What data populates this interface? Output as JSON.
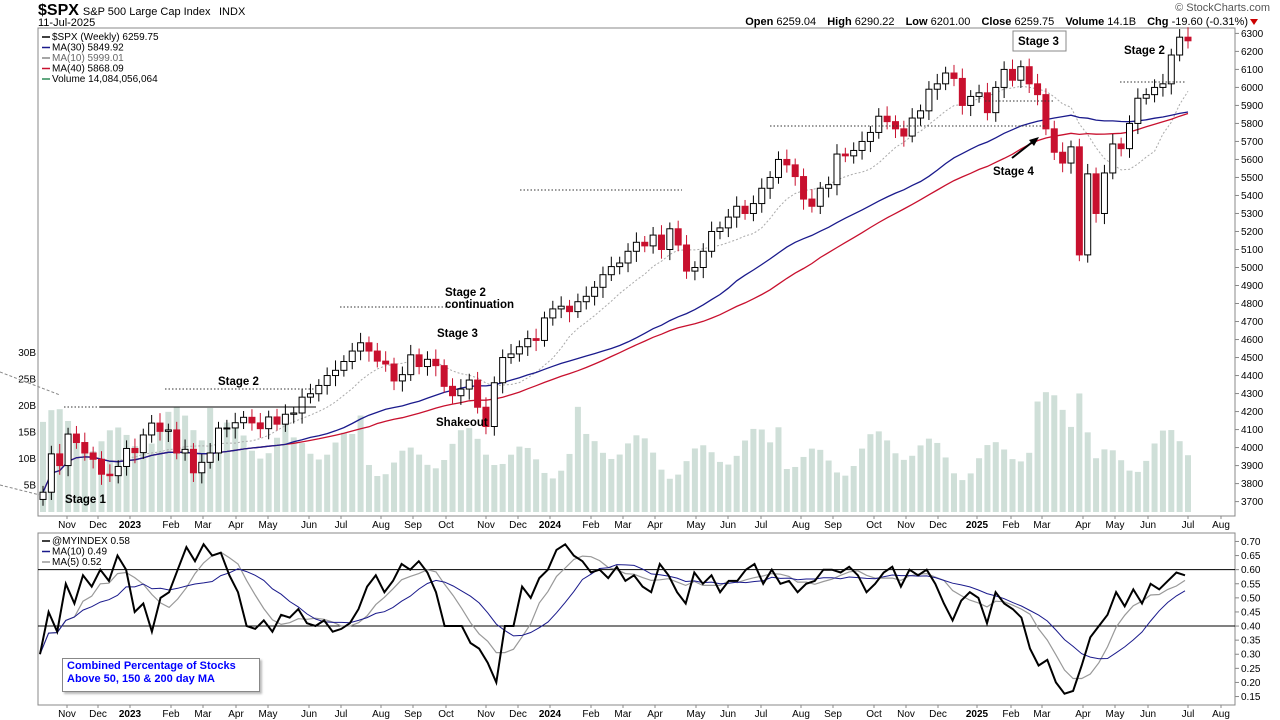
{
  "header": {
    "symbol": "$SPX",
    "name": "S&P 500 Large Cap Index",
    "exchange": "INDX",
    "date": "11-Jul-2025",
    "brand": "© StockCharts.com",
    "open_label": "Open",
    "open": "6259.04",
    "high_label": "High",
    "high": "6290.22",
    "low_label": "Low",
    "low": "6201.00",
    "close_label": "Close",
    "close": "6259.75",
    "volume_label": "Volume",
    "volume": "14.1B",
    "chg_label": "Chg",
    "chg": "-19.60 (-0.31%)"
  },
  "colors": {
    "up_candle": "#000000",
    "down_candle": "#c8102e",
    "ma30": "#1a1a8c",
    "ma10": "#aaaaaa",
    "ma40": "#c8102e",
    "volume": "#cfdfd8",
    "indicator": "#000000",
    "indicator_ma10": "#1a1a8c",
    "indicator_ma5": "#999999"
  },
  "chart_data": [
    {
      "type": "candlestick",
      "legend": [
        {
          "label": "$SPX (Weekly) 6259.75",
          "color": "#000000"
        },
        {
          "label": "MA(30) 5849.92",
          "color": "#1a1a8c"
        },
        {
          "label": "MA(10) 5999.01",
          "color": "#888888"
        },
        {
          "label": "MA(40) 5868.09",
          "color": "#c8102e"
        },
        {
          "label": "Volume 14,084,056,064",
          "color": "#2e8b57"
        }
      ],
      "x_ticks": [
        "Nov",
        "Dec",
        "2023",
        "Feb",
        "Mar",
        "Apr",
        "May",
        "Jun",
        "Jul",
        "Aug",
        "Sep",
        "Oct",
        "Nov",
        "Dec",
        "2024",
        "Feb",
        "Mar",
        "Apr",
        "May",
        "Jun",
        "Jul",
        "Aug",
        "Sep",
        "Oct",
        "Nov",
        "Dec",
        "2025",
        "Feb",
        "Mar",
        "Apr",
        "May",
        "Jun",
        "Jul",
        "Aug"
      ],
      "y_ticks": [
        3700,
        3800,
        3900,
        4000,
        4100,
        4200,
        4300,
        4400,
        4500,
        4600,
        4700,
        4800,
        4900,
        5000,
        5100,
        5200,
        5300,
        5400,
        5500,
        5600,
        5700,
        5800,
        5900,
        6000,
        6100,
        6200,
        6300
      ],
      "ylim": [
        3620,
        6330
      ],
      "volume_ticks": [
        "5B",
        "10B",
        "15B",
        "20B",
        "25B",
        "30B"
      ],
      "close": [
        3752,
        3965,
        3900,
        4075,
        4028,
        3970,
        3935,
        3852,
        3844,
        3895,
        3995,
        3972,
        4070,
        4136,
        4090,
        4098,
        3970,
        3990,
        3860,
        3918,
        3970,
        4108,
        4109,
        4138,
        4168,
        4137,
        4105,
        4170,
        4130,
        4185,
        4192,
        4280,
        4299,
        4345,
        4400,
        4429,
        4478,
        4536,
        4582,
        4536,
        4480,
        4464,
        4370,
        4405,
        4515,
        4450,
        4490,
        4455,
        4340,
        4288,
        4325,
        4375,
        4224,
        4117,
        4360,
        4500,
        4520,
        4560,
        4605,
        4595,
        4720,
        4770,
        4785,
        4755,
        4810,
        4840,
        4890,
        4960,
        5005,
        5025,
        5090,
        5140,
        5120,
        5180,
        5100,
        5215,
        5125,
        4980,
        5000,
        5090,
        5200,
        5220,
        5280,
        5340,
        5300,
        5355,
        5440,
        5500,
        5600,
        5570,
        5505,
        5380,
        5340,
        5440,
        5460,
        5630,
        5620,
        5650,
        5700,
        5750,
        5840,
        5810,
        5770,
        5730,
        5830,
        5870,
        5990,
        6020,
        6080,
        6050,
        5900,
        5950,
        5970,
        5860,
        6000,
        6100,
        6040,
        6115,
        6020,
        5960,
        5770,
        5640,
        5580,
        5670,
        5070,
        5520,
        5300,
        5525,
        5686,
        5660,
        5800,
        5940,
        5960,
        6000,
        6020,
        6180,
        6279,
        6259
      ],
      "volume_profile_desc": "weekly volume bars",
      "annotations": [
        "Stage 1",
        "Stage 2",
        "Shakeout",
        "Stage 3",
        "Stage 2",
        "continuation",
        "Stage 3",
        "Stage 4",
        "Stage 2"
      ]
    },
    {
      "type": "line",
      "legend": [
        {
          "label": "@MYINDEX 0.58",
          "color": "#000000"
        },
        {
          "label": "MA(10) 0.49",
          "color": "#1a1a8c"
        },
        {
          "label": "MA(5) 0.52",
          "color": "#999999"
        }
      ],
      "y_ticks": [
        "0.15",
        "0.20",
        "0.25",
        "0.30",
        "0.35",
        "0.40",
        "0.45",
        "0.50",
        "0.55",
        "0.60",
        "0.65",
        "0.70"
      ],
      "ylim": [
        0.12,
        0.73
      ],
      "hlines": [
        0.6,
        0.4
      ],
      "values": [
        0.3,
        0.45,
        0.38,
        0.55,
        0.48,
        0.58,
        0.54,
        0.6,
        0.56,
        0.65,
        0.6,
        0.45,
        0.48,
        0.38,
        0.5,
        0.52,
        0.6,
        0.68,
        0.63,
        0.69,
        0.65,
        0.66,
        0.58,
        0.52,
        0.4,
        0.39,
        0.42,
        0.38,
        0.44,
        0.43,
        0.46,
        0.41,
        0.4,
        0.42,
        0.38,
        0.39,
        0.41,
        0.46,
        0.54,
        0.58,
        0.52,
        0.56,
        0.62,
        0.6,
        0.63,
        0.59,
        0.52,
        0.4,
        0.4,
        0.4,
        0.34,
        0.32,
        0.27,
        0.2,
        0.4,
        0.4,
        0.54,
        0.5,
        0.57,
        0.6,
        0.67,
        0.69,
        0.65,
        0.63,
        0.59,
        0.6,
        0.57,
        0.61,
        0.56,
        0.58,
        0.54,
        0.52,
        0.62,
        0.58,
        0.52,
        0.48,
        0.59,
        0.55,
        0.58,
        0.52,
        0.56,
        0.56,
        0.6,
        0.62,
        0.55,
        0.6,
        0.55,
        0.56,
        0.52,
        0.55,
        0.56,
        0.6,
        0.6,
        0.59,
        0.61,
        0.58,
        0.52,
        0.55,
        0.59,
        0.61,
        0.54,
        0.6,
        0.58,
        0.6,
        0.55,
        0.48,
        0.42,
        0.49,
        0.52,
        0.5,
        0.41,
        0.52,
        0.48,
        0.46,
        0.43,
        0.32,
        0.26,
        0.28,
        0.2,
        0.16,
        0.17,
        0.26,
        0.36,
        0.4,
        0.44,
        0.52,
        0.47,
        0.53,
        0.48,
        0.55,
        0.53,
        0.56,
        0.59,
        0.58
      ],
      "note_line1": "Combined Percentage of Stocks",
      "note_line2": "Above 50, 150 & 200 day MA"
    }
  ]
}
